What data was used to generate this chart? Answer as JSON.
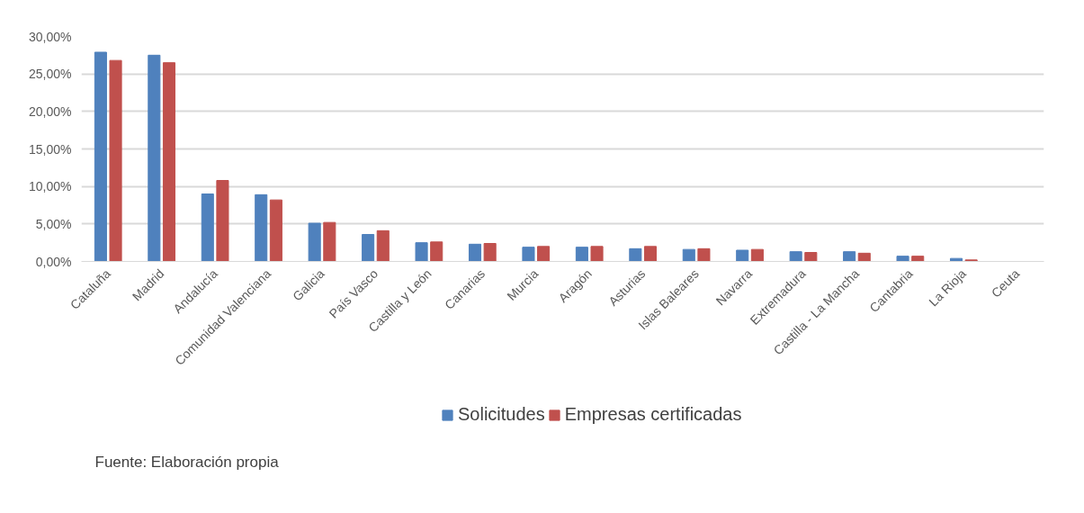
{
  "chart_data": {
    "type": "bar",
    "categories": [
      "Cataluña",
      "Madrid",
      "Andalucía",
      "Comunidad Valenciana",
      "Galicia",
      "País Vasco",
      "Castilla y León",
      "Canarias",
      "Murcia",
      "Aragón",
      "Asturias",
      "Islas Baleares",
      "Navarra",
      "Extremadura",
      "Castilla - La Mancha",
      "Cantabria",
      "La Rioja",
      "Ceuta"
    ],
    "series": [
      {
        "name": "Solicitudes",
        "color": "#4f81bd",
        "values": [
          27.9,
          27.5,
          9.0,
          8.9,
          5.1,
          3.6,
          2.5,
          2.3,
          1.9,
          1.9,
          1.7,
          1.6,
          1.5,
          1.3,
          1.3,
          0.7,
          0.4,
          0
        ]
      },
      {
        "name": "Empresas certificadas",
        "color": "#c0504d",
        "values": [
          26.8,
          26.5,
          10.8,
          8.2,
          5.2,
          4.1,
          2.6,
          2.4,
          2.0,
          2.0,
          2.0,
          1.7,
          1.6,
          1.2,
          1.1,
          0.7,
          0.2,
          0
        ]
      }
    ],
    "ylim": [
      0,
      30
    ],
    "yticks": [
      {
        "value": 0,
        "label": "0,00%"
      },
      {
        "value": 5,
        "label": "5,00%"
      },
      {
        "value": 10,
        "label": "10,00%"
      },
      {
        "value": 15,
        "label": "15,00%"
      },
      {
        "value": 20,
        "label": "20,00%"
      },
      {
        "value": 25,
        "label": "25,00%"
      },
      {
        "value": 30,
        "label": "30,00%"
      }
    ],
    "grid": "y",
    "legend": "bottom",
    "annotations": [
      "Fuente: Elaboración propia"
    ]
  }
}
